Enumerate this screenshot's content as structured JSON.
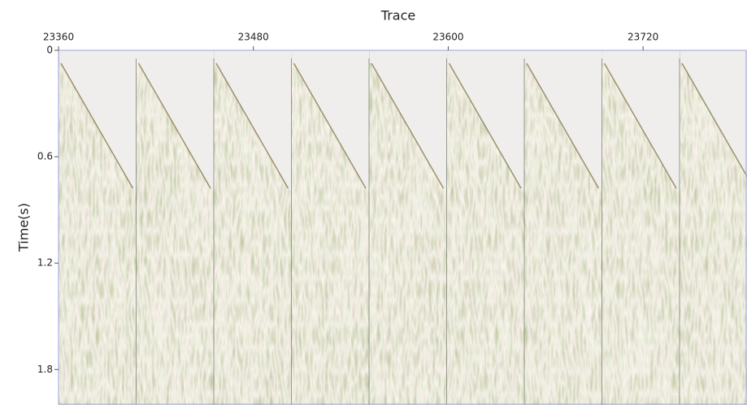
{
  "chart_data": {
    "type": "seismic",
    "x_label": "Trace",
    "y_label": "Time(s)",
    "xlim": [
      23360,
      23784
    ],
    "xticks": [
      23360,
      23480,
      23600,
      23720
    ],
    "ylim": [
      0,
      2.0
    ],
    "yticks": [
      0,
      0.6,
      1.2,
      1.8
    ]
  }
}
